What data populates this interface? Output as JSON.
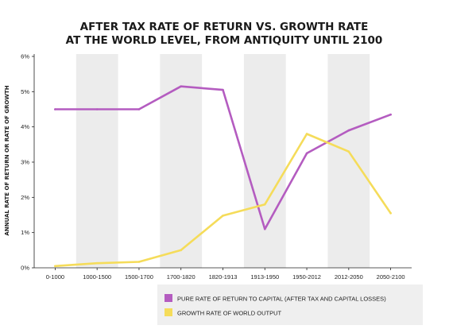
{
  "chart_data": {
    "type": "line",
    "title": [
      "AFTER TAX RATE OF RETURN VS. GROWTH RATE",
      "AT THE WORLD LEVEL, FROM ANTIQUITY UNTIL 2100"
    ],
    "ylabel": "ANNUAL RATE OF RETURN OR RATE OF GROWTH",
    "xlabel": "",
    "categories": [
      "0-1000",
      "1000-1500",
      "1500-1700",
      "1700-1820",
      "1820-1913",
      "1913-1950",
      "1950-2012",
      "2012-2050",
      "2050-2100"
    ],
    "yticks": [
      "0%",
      "1%",
      "2%",
      "3%",
      "4%",
      "5%",
      "6%"
    ],
    "ylim": [
      0,
      6
    ],
    "shaded_bands": true,
    "grid": false,
    "legend_position": "bottom-right",
    "series": [
      {
        "name": "PURE RATE OF RETURN TO CAPITAL (AFTER TAX AND CAPITAL LOSSES)",
        "color": "#b45cc0",
        "values": [
          4.5,
          4.5,
          4.5,
          5.15,
          5.05,
          1.1,
          3.25,
          3.9,
          4.35
        ]
      },
      {
        "name": "GROWTH RATE OF WORLD OUTPUT",
        "color": "#f5dc5a",
        "values": [
          0.05,
          0.13,
          0.17,
          0.5,
          1.48,
          1.8,
          3.8,
          3.3,
          1.55
        ]
      }
    ]
  }
}
